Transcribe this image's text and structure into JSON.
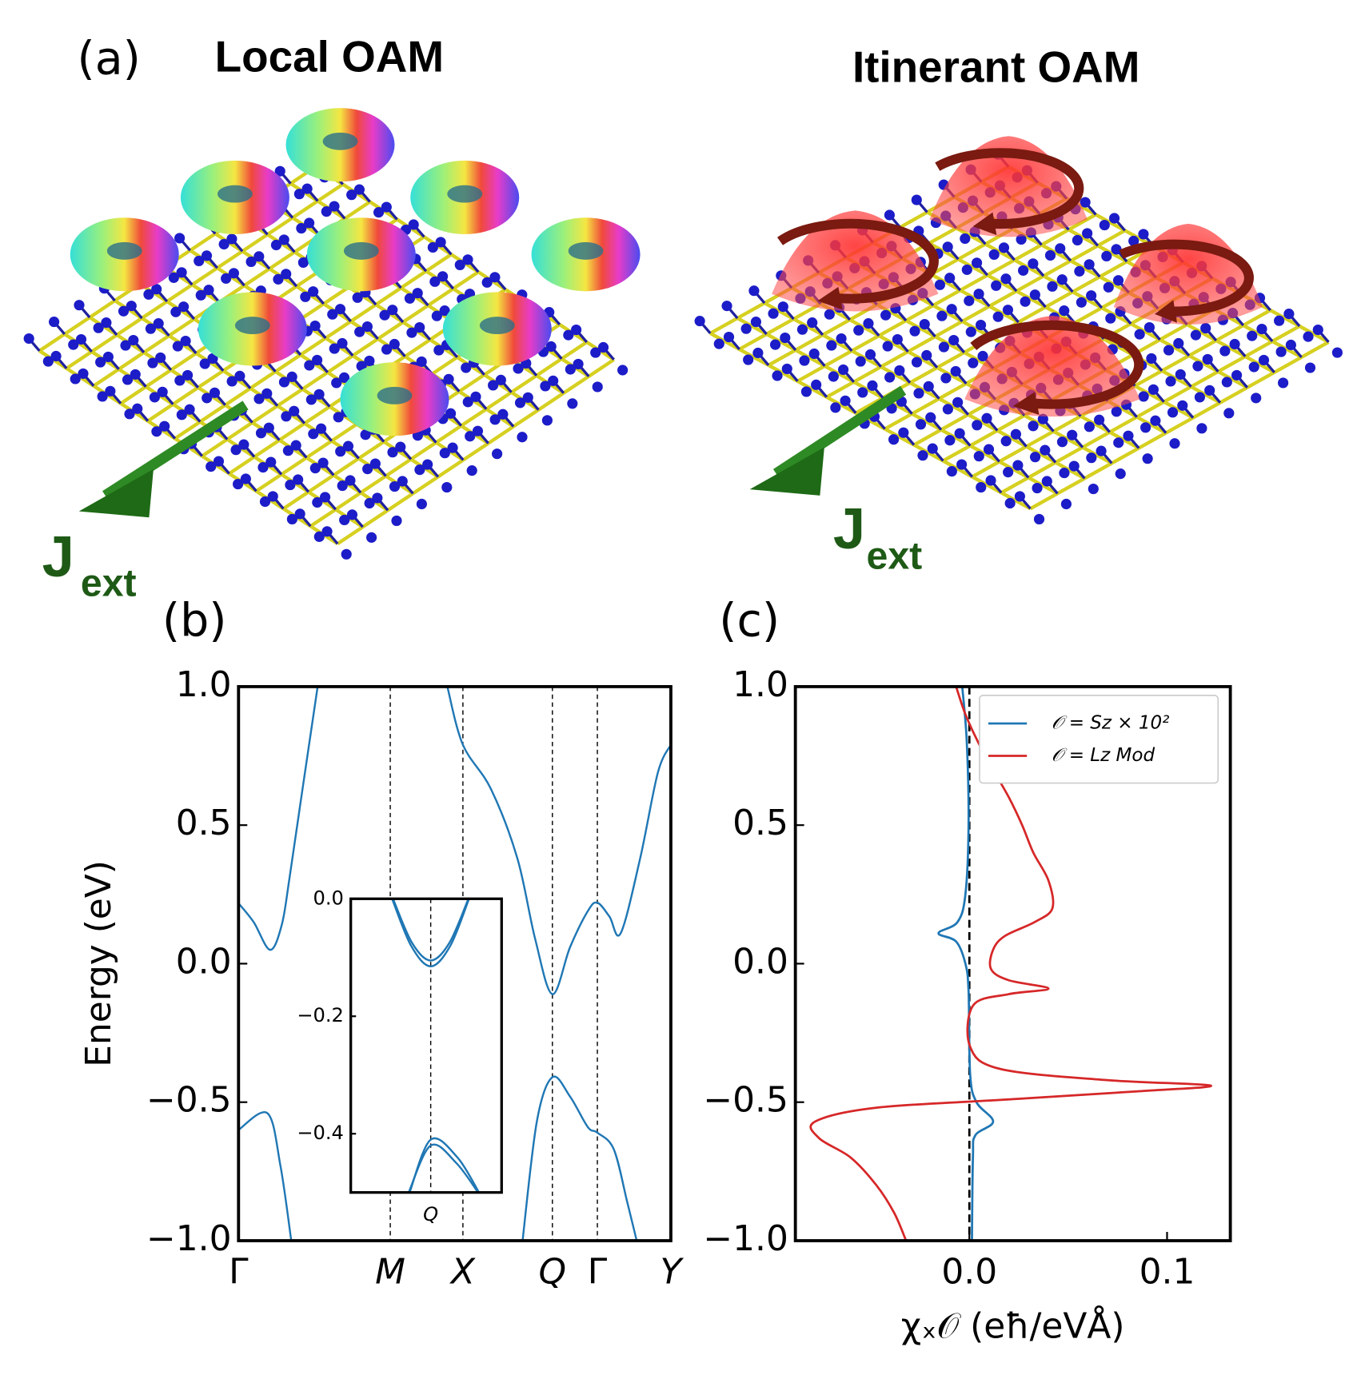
{
  "illustration": {
    "panel_label": "(a)",
    "left_title": "Local OAM",
    "right_title": "Itinerant OAM",
    "current_symbol": "J",
    "current_subscript": "ext"
  },
  "chart_data": [
    {
      "type": "line",
      "panel_label": "(b)",
      "ylabel": "Energy (eV)",
      "color": "#1f77b4",
      "xlim": [
        0,
        1
      ],
      "ylim": [
        -1.0,
        1.0
      ],
      "xticks": [
        {
          "value": 0,
          "label": "Γ"
        },
        {
          "value": 0.351,
          "label": "M"
        },
        {
          "value": 0.519,
          "label": "X"
        },
        {
          "value": 0.726,
          "label": "Q"
        },
        {
          "value": 0.83,
          "label": "Γ"
        },
        {
          "value": 1.0,
          "label": "Y"
        }
      ],
      "xtick_lines": "dashed",
      "yticks": [
        {
          "value": 1.0,
          "label": "1.0"
        },
        {
          "value": 0.5,
          "label": "0.5"
        },
        {
          "value": 0,
          "label": "0.0"
        },
        {
          "value": -0.5,
          "label": "−0.5"
        },
        {
          "value": -1.0,
          "label": "−1.0"
        }
      ],
      "series": [
        {
          "x": [
            0,
            0.035,
            0.073,
            0.1,
            0.118,
            0.148,
            0.183
          ],
          "values": [
            0.218,
            0.15,
            0.05,
            0.14,
            0.31,
            0.63,
            1.0
          ]
        },
        {
          "x": [
            0.483,
            0.519,
            0.584,
            0.645,
            0.686,
            0.726,
            0.767,
            0.808,
            0.83,
            0.858,
            0.884,
            0.929,
            0.97,
            1.0
          ],
          "values": [
            1.0,
            0.79,
            0.63,
            0.38,
            0.09,
            -0.11,
            0.06,
            0.19,
            0.22,
            0.17,
            0.11,
            0.38,
            0.69,
            0.79
          ]
        },
        {
          "x": [
            0,
            0.067,
            0.097,
            0.122
          ],
          "values": [
            -0.6,
            -0.54,
            -0.73,
            -1.0
          ]
        },
        {
          "x": [
            0.657,
            0.69,
            0.726,
            0.767,
            0.808,
            0.83,
            0.868,
            0.899,
            0.921
          ],
          "values": [
            -1.0,
            -0.57,
            -0.41,
            -0.48,
            -0.59,
            -0.61,
            -0.67,
            -0.86,
            -1.0
          ]
        }
      ]
    },
    {
      "type": "line",
      "inset": true,
      "color": "#1f77b4",
      "xlim": [
        0.7,
        0.75
      ],
      "ylim": [
        -0.5,
        0.0
      ],
      "xticks": [
        {
          "value": 0.7265,
          "label": "Q"
        }
      ],
      "xtick_lines": "dashed",
      "yticks": [
        {
          "value": 0,
          "label": "0.0"
        },
        {
          "value": -0.2,
          "label": "−0.2"
        },
        {
          "value": -0.4,
          "label": "−0.4"
        }
      ],
      "series": [
        {
          "x": [
            0.7137,
            0.72,
            0.7265,
            0.733,
            0.7392
          ],
          "values": [
            0.0,
            -0.08,
            -0.115,
            -0.08,
            0.0
          ]
        },
        {
          "x": [
            0.714,
            0.7203,
            0.7265,
            0.7327,
            0.739
          ],
          "values": [
            0.0,
            -0.075,
            -0.105,
            -0.075,
            0.0
          ]
        },
        {
          "x": [
            0.7192,
            0.7265,
            0.735,
            0.7422
          ],
          "values": [
            -0.5,
            -0.42,
            -0.45,
            -0.5
          ]
        },
        {
          "x": [
            0.7195,
            0.7265,
            0.7353,
            0.7425
          ],
          "values": [
            -0.5,
            -0.41,
            -0.44,
            -0.5
          ]
        }
      ]
    },
    {
      "type": "line",
      "orientation": "horizontal",
      "panel_label": "(c)",
      "xlabel": "χₓ𝒪 (eħ/eVÅ)",
      "xlim": [
        -0.088,
        0.132
      ],
      "ylim": [
        -1.0,
        1.0
      ],
      "xticks": [
        {
          "value": 0,
          "label": "0.0"
        },
        0.1
      ],
      "yticks": [
        {
          "value": 1.0,
          "label": "1.0"
        },
        {
          "value": 0.5,
          "label": "0.5"
        },
        {
          "value": 0,
          "label": "0.0"
        },
        {
          "value": -0.5,
          "label": "−0.5"
        },
        {
          "value": -1.0,
          "label": "−1.0"
        }
      ],
      "reference_line_x": 0,
      "legend": "upper right",
      "series": [
        {
          "name": "𝒪 = Sz × 10²",
          "color": "#1f77b4",
          "y": [
            1.0,
            0.8,
            0.5,
            0.25,
            0.15,
            0.11,
            0.08,
            0.0,
            -0.1,
            -0.4,
            -0.5,
            -0.57,
            -0.62,
            -0.7,
            -1.0
          ],
          "values": [
            -0.0036,
            -0.0013,
            -0.0004,
            -0.002,
            -0.006,
            -0.0156,
            -0.0067,
            -0.002,
            -0.0004,
            0.0004,
            0.0036,
            0.012,
            0.003,
            0.0018,
            0.0013
          ]
        },
        {
          "name": "𝒪 = Lz Mod",
          "color": "#d62728",
          "y": [
            1.0,
            0.9,
            0.8,
            0.7,
            0.6,
            0.5,
            0.4,
            0.3,
            0.2,
            0.15,
            0.1,
            0.05,
            -0.02,
            -0.06,
            -0.09,
            -0.11,
            -0.15,
            -0.3,
            -0.38,
            -0.42,
            -0.44,
            -0.46,
            -0.49,
            -0.52,
            -0.57,
            -0.63,
            -0.7,
            -0.8,
            -0.9,
            -1.0
          ],
          "values": [
            -0.0067,
            -0.002,
            0.0044,
            0.012,
            0.02,
            0.0267,
            0.0324,
            0.04,
            0.042,
            0.033,
            0.018,
            0.012,
            0.011,
            0.02,
            0.04,
            0.02,
            0.002,
            0.0004,
            0.0156,
            0.069,
            0.122,
            0.087,
            0.02,
            -0.047,
            -0.078,
            -0.076,
            -0.06,
            -0.047,
            -0.038,
            -0.032
          ]
        }
      ]
    }
  ]
}
